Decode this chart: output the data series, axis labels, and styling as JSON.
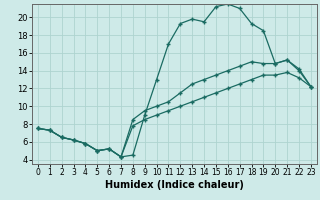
{
  "xlabel": "Humidex (Indice chaleur)",
  "background_color": "#ceeae8",
  "line_color": "#1a6b62",
  "grid_color": "#aed4d0",
  "x_ticks": [
    0,
    1,
    2,
    3,
    4,
    5,
    6,
    7,
    8,
    9,
    10,
    11,
    12,
    13,
    14,
    15,
    16,
    17,
    18,
    19,
    20,
    21,
    22,
    23
  ],
  "y_ticks": [
    4,
    6,
    8,
    10,
    12,
    14,
    16,
    18,
    20
  ],
  "ylim": [
    3.5,
    21.5
  ],
  "xlim": [
    -0.5,
    23.5
  ],
  "line1_x": [
    0,
    1,
    2,
    3,
    4,
    5,
    6,
    7,
    8,
    9,
    10,
    11,
    12,
    13,
    14,
    15,
    16,
    17,
    18,
    19,
    20,
    21,
    22,
    23
  ],
  "line1_y": [
    7.5,
    7.3,
    6.5,
    6.2,
    5.8,
    5.0,
    5.2,
    4.3,
    4.5,
    9.0,
    13.0,
    17.0,
    19.3,
    19.8,
    19.5,
    21.2,
    21.5,
    21.0,
    19.3,
    18.5,
    14.8,
    15.2,
    14.0,
    12.2
  ],
  "line2_x": [
    0,
    1,
    2,
    3,
    4,
    5,
    6,
    7,
    8,
    9,
    10,
    11,
    12,
    13,
    14,
    15,
    16,
    17,
    18,
    19,
    20,
    21,
    22,
    23
  ],
  "line2_y": [
    7.5,
    7.3,
    6.5,
    6.2,
    5.8,
    5.0,
    5.2,
    4.3,
    8.5,
    9.5,
    10.0,
    10.5,
    11.5,
    12.5,
    13.0,
    13.5,
    14.0,
    14.5,
    15.0,
    14.8,
    14.8,
    15.2,
    14.2,
    12.2
  ],
  "line3_x": [
    0,
    1,
    2,
    3,
    4,
    5,
    6,
    7,
    8,
    9,
    10,
    11,
    12,
    13,
    14,
    15,
    16,
    17,
    18,
    19,
    20,
    21,
    22,
    23
  ],
  "line3_y": [
    7.5,
    7.3,
    6.5,
    6.2,
    5.8,
    5.0,
    5.2,
    4.3,
    7.8,
    8.5,
    9.0,
    9.5,
    10.0,
    10.5,
    11.0,
    11.5,
    12.0,
    12.5,
    13.0,
    13.5,
    13.5,
    13.8,
    13.2,
    12.2
  ]
}
